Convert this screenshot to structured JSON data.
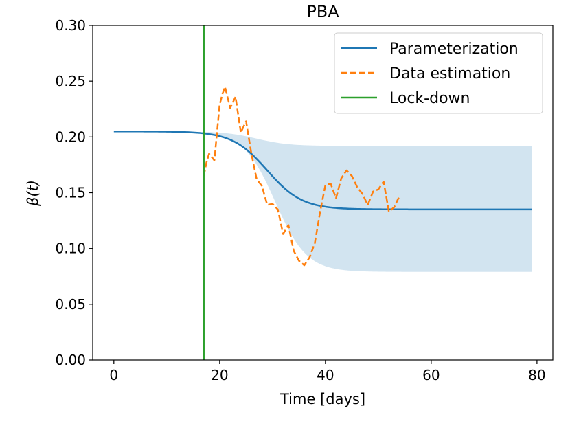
{
  "chart_data": {
    "type": "line",
    "title": "PBA",
    "xlabel": "Time [days]",
    "ylabel": "β(t)",
    "xlim": [
      -4,
      83
    ],
    "ylim": [
      0.0,
      0.3
    ],
    "xticks": [
      0,
      20,
      40,
      60,
      80
    ],
    "yticks": [
      0.0,
      0.05,
      0.1,
      0.15,
      0.2,
      0.25,
      0.3
    ],
    "xtick_labels": [
      "0",
      "20",
      "40",
      "60",
      "80"
    ],
    "ytick_labels": [
      "0.00",
      "0.05",
      "0.10",
      "0.15",
      "0.20",
      "0.25",
      "0.30"
    ],
    "legend_position": "top-right",
    "colors": {
      "parameterization": "#1f77b4",
      "band": "#1f77b4",
      "data_estimation": "#ff7f0e",
      "lockdown": "#2ca02c"
    },
    "series": [
      {
        "name": "Parameterization",
        "style": "solid",
        "sigmoid": {
          "start": 0.205,
          "end": 0.135,
          "midpoint": 29,
          "width": 3.3
        },
        "x_range": [
          0,
          79
        ]
      },
      {
        "name": "Data estimation",
        "style": "dashed",
        "x": [
          17,
          17.5,
          18,
          19,
          20,
          20.5,
          21,
          22,
          23,
          24,
          25,
          26,
          27,
          28,
          29,
          30,
          31,
          32,
          33,
          34,
          35,
          36,
          37,
          38,
          39,
          40,
          41,
          42,
          43,
          44,
          45,
          46,
          47,
          48,
          49,
          50,
          51,
          52,
          53,
          54
        ],
        "values": [
          0.165,
          0.177,
          0.185,
          0.179,
          0.229,
          0.238,
          0.245,
          0.226,
          0.236,
          0.204,
          0.214,
          0.185,
          0.162,
          0.156,
          0.139,
          0.14,
          0.135,
          0.113,
          0.121,
          0.098,
          0.089,
          0.085,
          0.092,
          0.105,
          0.133,
          0.157,
          0.158,
          0.145,
          0.163,
          0.17,
          0.165,
          0.155,
          0.149,
          0.139,
          0.151,
          0.153,
          0.16,
          0.133,
          0.137,
          0.147
        ]
      },
      {
        "name": "Lock-down",
        "style": "vertical",
        "x": 17
      }
    ],
    "band": {
      "name": "uncertainty band",
      "x_range": [
        17,
        79
      ],
      "upper": {
        "start": 0.205,
        "end": 0.192,
        "midpoint": 27,
        "width": 3.0
      },
      "lower": {
        "start": 0.205,
        "end": 0.079,
        "midpoint": 30.5,
        "width": 3.0
      }
    }
  }
}
